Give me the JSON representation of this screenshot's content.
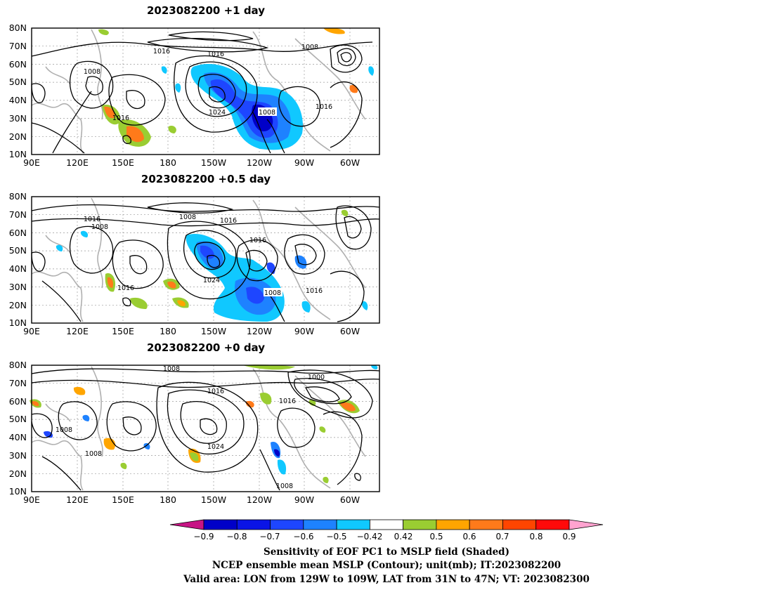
{
  "panels": [
    {
      "title": "2023082200  +1  day",
      "contour_labels": [
        "1016",
        "1016",
        "1008",
        "1008",
        "1024",
        "1008",
        "1016",
        "1016"
      ]
    },
    {
      "title": "2023082200  +0.5  day",
      "contour_labels": [
        "1008",
        "1016",
        "1016",
        "1008",
        "1016",
        "1024",
        "1016",
        "1008",
        "1016"
      ]
    },
    {
      "title": "2023082200  +0  day",
      "contour_labels": [
        "1008",
        "1000",
        "1016",
        "1016",
        "1008",
        "1024",
        "1008",
        "1008"
      ]
    }
  ],
  "axes": {
    "lat_labels": [
      "80N",
      "70N",
      "60N",
      "50N",
      "40N",
      "30N",
      "20N",
      "10N"
    ],
    "lon_labels": [
      "90E",
      "120E",
      "150E",
      "180",
      "150W",
      "120W",
      "90W",
      "60W"
    ]
  },
  "colorbar": {
    "labels": [
      "−0.9",
      "−0.8",
      "−0.7",
      "−0.6",
      "−0.5",
      "−0.42",
      "0.42",
      "0.5",
      "0.6",
      "0.7",
      "0.8",
      "0.9"
    ],
    "colors": [
      "#0000c8",
      "#0a14e6",
      "#1e46ff",
      "#1e82ff",
      "#10c8ff",
      "#ffffff",
      "#9acd32",
      "#ffa500",
      "#ff7a1a",
      "#ff4500",
      "#ff0a0a"
    ],
    "low_end_color": "#c71585",
    "high_end_color": "#ffa3d0"
  },
  "caption": {
    "line1": "Sensitivity of EOF PC1 to MSLP field (Shaded)",
    "line2": "NCEP ensemble mean MSLP (Contour); unit(mb); IT:2023082200",
    "line3": "Valid area: LON from 129W to 109W, LAT from 31N to 47N; VT: 2023082300"
  }
}
